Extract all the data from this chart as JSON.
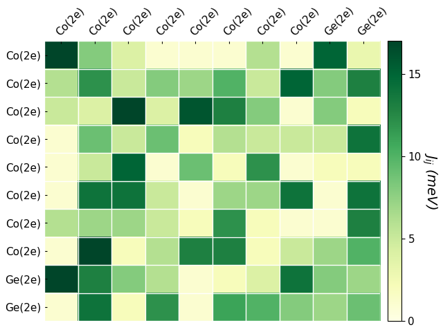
{
  "labels": [
    "Co(2e)",
    "Co(2e)",
    "Co(2e)",
    "Co(2e)",
    "Co(2e)",
    "Co(2e)",
    "Co(2e)",
    "Co(2e)",
    "Ge(2e)",
    "Ge(2e)"
  ],
  "matrix": [
    [
      17,
      8,
      4,
      1,
      1,
      1,
      6,
      1,
      15,
      3
    ],
    [
      6,
      12,
      5,
      8,
      7,
      10,
      5,
      15,
      8,
      13
    ],
    [
      5,
      4,
      17,
      4,
      16,
      13,
      8,
      1,
      8,
      2
    ],
    [
      1,
      9,
      5,
      9,
      2,
      6,
      5,
      5,
      5,
      14
    ],
    [
      1,
      5,
      15,
      1,
      9,
      2,
      12,
      1,
      2,
      2
    ],
    [
      1,
      14,
      14,
      5,
      1,
      7,
      7,
      14,
      1,
      14
    ],
    [
      6,
      7,
      7,
      5,
      2,
      12,
      2,
      1,
      1,
      13
    ],
    [
      1,
      17,
      2,
      6,
      13,
      13,
      2,
      5,
      7,
      10
    ],
    [
      17,
      13,
      8,
      6,
      1,
      2,
      4,
      14,
      8,
      7
    ],
    [
      1,
      14,
      2,
      12,
      1,
      11,
      10,
      8,
      7,
      9
    ]
  ],
  "vmin": 0,
  "vmax": 17,
  "cmap": "YlGn",
  "colorbar_label": "$J_{ij}$ (meV)",
  "colorbar_ticks": [
    0,
    5,
    10,
    15
  ],
  "figsize": [
    6.4,
    4.8
  ],
  "dpi": 100
}
